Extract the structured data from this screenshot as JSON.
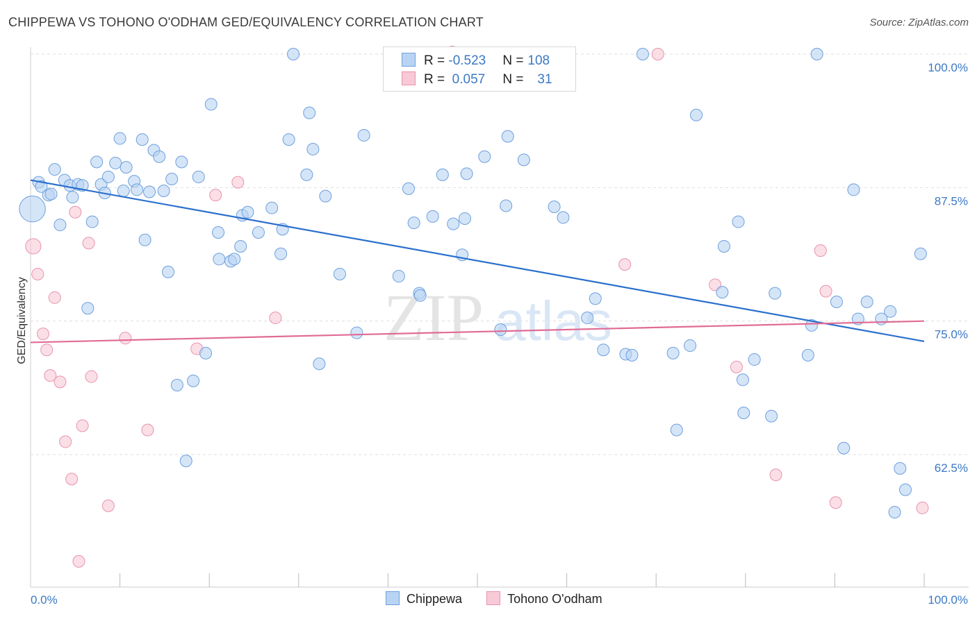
{
  "title": "CHIPPEWA VS TOHONO O'ODHAM GED/EQUIVALENCY CORRELATION CHART",
  "source": "Source: ZipAtlas.com",
  "watermark": {
    "zip": "ZIP",
    "atlas": "atlas"
  },
  "legend": {
    "rows": [
      {
        "r_label": "R = ",
        "r_value": "-0.523",
        "n_label": "N = ",
        "n_value": "108"
      },
      {
        "r_label": "R = ",
        "r_value": " 0.057",
        "n_label": "N = ",
        "n_value": "31"
      }
    ]
  },
  "colors": {
    "blue_fill": "#b9d4f3",
    "blue_stroke": "#6d9fdc",
    "blue_line": "#2a6fcd",
    "pink_fill": "#f8c9d6",
    "pink_stroke": "#e893ae",
    "pink_line": "#e06b95",
    "label_blue": "#3b78c4"
  },
  "chart_data": {
    "type": "scatter",
    "title": "CHIPPEWA VS TOHONO O'ODHAM GED/EQUIVALENCY CORRELATION CHART",
    "xlabel": "",
    "ylabel": "GED/Equivalency",
    "xlim": [
      0,
      100
    ],
    "ylim": [
      52,
      101
    ],
    "y_ticks": [
      {
        "value": 100,
        "label": "100.0%"
      },
      {
        "value": 87.5,
        "label": "87.5%"
      },
      {
        "value": 75,
        "label": "75.0%"
      },
      {
        "value": 62.5,
        "label": "62.5%"
      }
    ],
    "x_tick_labels": [
      {
        "value": 0,
        "label": "0.0%"
      },
      {
        "value": 100,
        "label": "100.0%"
      }
    ],
    "x_minor_ticks": [
      10,
      20,
      30,
      40,
      50,
      60,
      70,
      80,
      90,
      100
    ],
    "grid": true,
    "series": [
      {
        "name": "Chippewa",
        "color": "blue",
        "trend": {
          "x": [
            0,
            100
          ],
          "y": [
            88.2,
            73.1
          ]
        },
        "points": [
          [
            0.2,
            85.5,
            2.2
          ],
          [
            0.9,
            88.0,
            1
          ],
          [
            1.2,
            87.6,
            1
          ],
          [
            2.0,
            86.8,
            1
          ],
          [
            2.3,
            86.9,
            1
          ],
          [
            2.7,
            89.2,
            1
          ],
          [
            3.3,
            84.0,
            1
          ],
          [
            3.8,
            88.2,
            1
          ],
          [
            4.4,
            87.7,
            1
          ],
          [
            4.7,
            86.6,
            1
          ],
          [
            5.3,
            87.8,
            1
          ],
          [
            5.8,
            87.7,
            1
          ],
          [
            6.4,
            76.2,
            1
          ],
          [
            6.9,
            84.3,
            1
          ],
          [
            7.4,
            89.9,
            1
          ],
          [
            7.9,
            87.8,
            1
          ],
          [
            8.3,
            87.0,
            1
          ],
          [
            8.7,
            88.5,
            1
          ],
          [
            9.5,
            89.8,
            1
          ],
          [
            10.0,
            92.1,
            1
          ],
          [
            10.4,
            87.2,
            1
          ],
          [
            10.7,
            89.4,
            1
          ],
          [
            11.6,
            88.1,
            1
          ],
          [
            11.9,
            87.3,
            1
          ],
          [
            12.5,
            92.0,
            1
          ],
          [
            12.8,
            82.6,
            1
          ],
          [
            13.3,
            87.1,
            1
          ],
          [
            13.8,
            91.0,
            1
          ],
          [
            14.4,
            90.4,
            1
          ],
          [
            14.9,
            87.2,
            1
          ],
          [
            15.4,
            79.6,
            1
          ],
          [
            15.8,
            88.3,
            1
          ],
          [
            16.4,
            69.0,
            1
          ],
          [
            16.9,
            89.9,
            1
          ],
          [
            17.4,
            61.9,
            1
          ],
          [
            18.2,
            69.4,
            1
          ],
          [
            18.8,
            88.5,
            1
          ],
          [
            19.6,
            72.0,
            1
          ],
          [
            20.2,
            95.3,
            1
          ],
          [
            21.0,
            83.3,
            1
          ],
          [
            21.1,
            80.8,
            1
          ],
          [
            22.4,
            80.6,
            1
          ],
          [
            22.8,
            80.8,
            1
          ],
          [
            23.5,
            82.0,
            1
          ],
          [
            23.7,
            84.9,
            1
          ],
          [
            24.3,
            85.2,
            1
          ],
          [
            25.5,
            83.3,
            1
          ],
          [
            27.0,
            85.6,
            1
          ],
          [
            28.0,
            81.3,
            1
          ],
          [
            28.2,
            83.6,
            1
          ],
          [
            28.9,
            92.0,
            1
          ],
          [
            29.4,
            100.0,
            1
          ],
          [
            30.9,
            88.7,
            1
          ],
          [
            31.2,
            94.5,
            1
          ],
          [
            31.6,
            91.1,
            1
          ],
          [
            32.3,
            71.0,
            1
          ],
          [
            33.0,
            86.7,
            1
          ],
          [
            34.6,
            79.4,
            1
          ],
          [
            36.5,
            73.9,
            1
          ],
          [
            37.3,
            92.4,
            1
          ],
          [
            41.2,
            79.2,
            1
          ],
          [
            42.3,
            87.4,
            1
          ],
          [
            42.9,
            84.2,
            1
          ],
          [
            43.5,
            77.6,
            1
          ],
          [
            43.6,
            77.4,
            1
          ],
          [
            45.0,
            84.8,
            1
          ],
          [
            46.1,
            88.7,
            1
          ],
          [
            47.3,
            84.1,
            1
          ],
          [
            48.3,
            81.2,
            1
          ],
          [
            48.6,
            84.6,
            1
          ],
          [
            48.8,
            88.8,
            1
          ],
          [
            50.8,
            90.4,
            1
          ],
          [
            52.6,
            74.2,
            1
          ],
          [
            53.2,
            85.8,
            1
          ],
          [
            53.4,
            92.3,
            1
          ],
          [
            55.2,
            90.1,
            1
          ],
          [
            58.6,
            85.7,
            1
          ],
          [
            59.6,
            84.7,
            1
          ],
          [
            62.3,
            75.3,
            1
          ],
          [
            63.2,
            77.1,
            1
          ],
          [
            64.1,
            72.3,
            1
          ],
          [
            66.6,
            71.9,
            1
          ],
          [
            67.3,
            71.8,
            1
          ],
          [
            68.5,
            100.0,
            1
          ],
          [
            71.9,
            72.0,
            1
          ],
          [
            72.3,
            64.8,
            1
          ],
          [
            73.8,
            72.7,
            1
          ],
          [
            74.5,
            94.3,
            1
          ],
          [
            77.4,
            77.7,
            1
          ],
          [
            77.6,
            82.0,
            1
          ],
          [
            79.2,
            84.3,
            1
          ],
          [
            79.7,
            69.5,
            1
          ],
          [
            79.8,
            66.4,
            1
          ],
          [
            81.0,
            71.4,
            1
          ],
          [
            82.9,
            66.1,
            1
          ],
          [
            83.3,
            77.6,
            1
          ],
          [
            87.0,
            71.8,
            1
          ],
          [
            87.4,
            74.6,
            1
          ],
          [
            88.0,
            100.0,
            1
          ],
          [
            90.2,
            76.8,
            1
          ],
          [
            91.0,
            63.1,
            1
          ],
          [
            92.1,
            87.3,
            1
          ],
          [
            92.6,
            75.2,
            1
          ],
          [
            93.6,
            76.8,
            1
          ],
          [
            95.2,
            75.2,
            1
          ],
          [
            96.2,
            75.9,
            1
          ],
          [
            96.7,
            57.1,
            1
          ],
          [
            97.3,
            61.2,
            1
          ],
          [
            97.9,
            59.2,
            1
          ],
          [
            99.6,
            81.3,
            1
          ]
        ]
      },
      {
        "name": "Tohono O'odham",
        "color": "pink",
        "trend": {
          "x": [
            0,
            100
          ],
          "y": [
            73.0,
            75.0
          ]
        },
        "points": [
          [
            0.3,
            82.0,
            1.3
          ],
          [
            0.8,
            79.4,
            1
          ],
          [
            1.4,
            73.8,
            1
          ],
          [
            1.8,
            72.3,
            1
          ],
          [
            2.2,
            69.9,
            1
          ],
          [
            2.7,
            77.2,
            1
          ],
          [
            3.3,
            69.3,
            1
          ],
          [
            3.9,
            63.7,
            1
          ],
          [
            4.6,
            60.2,
            1
          ],
          [
            5.0,
            85.2,
            1
          ],
          [
            5.4,
            52.5,
            1
          ],
          [
            5.8,
            65.2,
            1
          ],
          [
            6.5,
            82.3,
            1
          ],
          [
            6.8,
            69.8,
            1
          ],
          [
            8.7,
            57.7,
            1
          ],
          [
            10.6,
            73.4,
            1
          ],
          [
            13.1,
            64.8,
            1
          ],
          [
            18.6,
            72.4,
            1
          ],
          [
            20.7,
            86.8,
            1
          ],
          [
            23.2,
            88.0,
            1
          ],
          [
            27.4,
            75.3,
            1
          ],
          [
            47.2,
            100.2,
            1
          ],
          [
            66.5,
            80.3,
            1
          ],
          [
            70.2,
            100.0,
            1
          ],
          [
            76.6,
            78.4,
            1
          ],
          [
            79.0,
            70.7,
            1
          ],
          [
            83.4,
            60.6,
            1
          ],
          [
            88.4,
            81.6,
            1
          ],
          [
            89.0,
            77.8,
            1
          ],
          [
            90.1,
            58.0,
            1
          ],
          [
            99.8,
            57.5,
            1
          ]
        ]
      }
    ]
  },
  "bottom_legend": [
    {
      "label": "Chippewa",
      "color": "blue"
    },
    {
      "label": "Tohono O'odham",
      "color": "pink"
    }
  ]
}
